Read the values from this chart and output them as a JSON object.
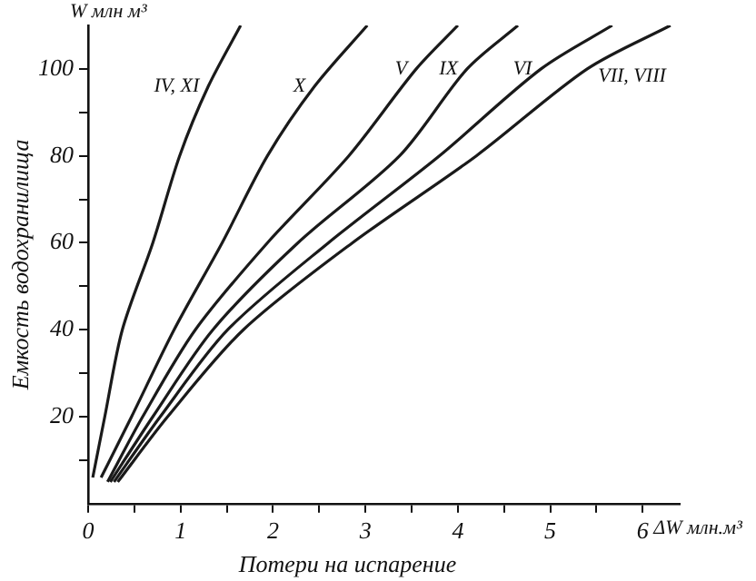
{
  "chart_data": {
    "type": "line",
    "xlabel": "Потери на испарение",
    "ylabel": "Емкость водохранилища",
    "annotations": [
      "W млн м³",
      "ΔW млн.м³"
    ],
    "xlim": [
      0,
      6.4
    ],
    "ylim": [
      0,
      110
    ],
    "xticks": [
      0,
      {
        "value": 0.5,
        "label": null
      },
      1,
      {
        "value": 1.5,
        "label": null
      },
      2,
      {
        "value": 2.5,
        "label": null
      },
      3,
      {
        "value": 3.5,
        "label": null
      },
      4,
      {
        "value": 4.5,
        "label": null
      },
      5,
      {
        "value": 5.5,
        "label": null
      },
      6
    ],
    "yticks": [
      {
        "value": 10,
        "label": null
      },
      20,
      {
        "value": 30,
        "label": null
      },
      40,
      {
        "value": 50,
        "label": null
      },
      60,
      {
        "value": 70,
        "label": null
      },
      80,
      {
        "value": 90,
        "label": null
      },
      100
    ],
    "grid": false,
    "legend": false,
    "marker": "none",
    "line_style": "solid",
    "series": [
      {
        "name": "IV, XI",
        "color": "#1a1a1a",
        "x": [
          0.05,
          0.18,
          0.37,
          0.7,
          0.99,
          1.3,
          1.65
        ],
        "values": [
          6,
          20,
          40,
          60,
          80,
          96,
          110
        ]
      },
      {
        "name": "X",
        "color": "#1a1a1a",
        "x": [
          0.14,
          0.47,
          0.93,
          1.45,
          1.94,
          2.45,
          3.02
        ],
        "values": [
          6,
          20,
          40,
          60,
          80,
          96,
          110
        ]
      },
      {
        "name": "V",
        "color": "#1a1a1a",
        "x": [
          0.21,
          0.59,
          1.16,
          1.94,
          2.82,
          3.55,
          4.0
        ],
        "values": [
          5,
          20,
          40,
          60,
          80,
          100,
          110
        ]
      },
      {
        "name": "IX",
        "color": "#1a1a1a",
        "x": [
          0.24,
          0.7,
          1.35,
          2.27,
          3.37,
          4.1,
          4.65
        ],
        "values": [
          5,
          20,
          40,
          60,
          80,
          100,
          110
        ]
      },
      {
        "name": "VI",
        "color": "#1a1a1a",
        "x": [
          0.28,
          0.78,
          1.51,
          2.6,
          3.8,
          4.9,
          5.67
        ],
        "values": [
          5,
          20,
          40,
          60,
          80,
          100,
          110
        ]
      },
      {
        "name": "VII, VIII",
        "color": "#1a1a1a",
        "x": [
          0.32,
          0.86,
          1.68,
          2.86,
          4.2,
          5.4,
          6.3
        ],
        "values": [
          5,
          20,
          40,
          60,
          80,
          100,
          110
        ]
      }
    ]
  }
}
